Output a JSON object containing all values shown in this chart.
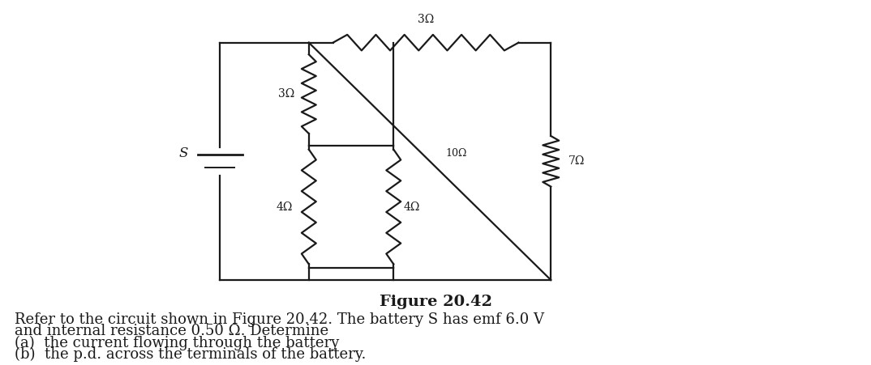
{
  "bg_color": "#ffffff",
  "fig_caption": "Figure 20.42",
  "caption_fontsize": 14,
  "caption_bold": true,
  "text_lines": [
    "Refer to the circuit shown in Figure 20.42. The battery S has emf 6.0 V",
    "and internal resistance 0.50 Ω. Determine",
    "(a)  the current flowing through the battery",
    "(b)  the p.d. across the terminals of the battery."
  ],
  "text_fontsize": 13,
  "diagram_color": "#1a1a1a"
}
